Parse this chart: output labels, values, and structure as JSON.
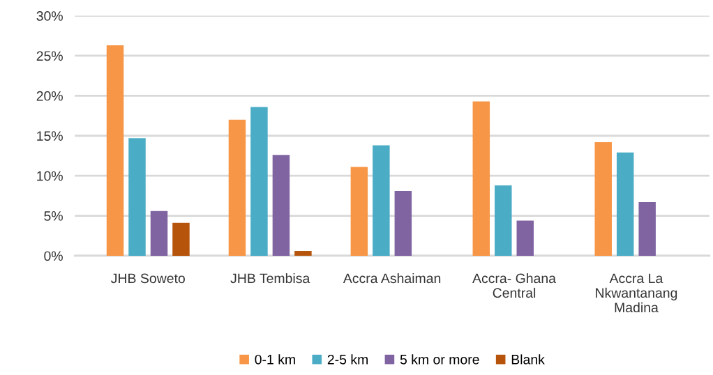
{
  "chart_data": {
    "type": "bar",
    "categories": [
      "JHB Soweto",
      "JHB Tembisa",
      "Accra Ashaiman",
      "Accra- Ghana\nCentral",
      "Accra La\nNkwantanang\nMadina"
    ],
    "series": [
      {
        "name": "0-1 km",
        "color": "#f79646",
        "values": [
          26.3,
          17.0,
          11.1,
          19.3,
          14.2
        ]
      },
      {
        "name": "2-5 km",
        "color": "#4bacc6",
        "values": [
          14.7,
          18.6,
          13.8,
          8.8,
          12.9
        ]
      },
      {
        "name": "5 km or more",
        "color": "#8064a2",
        "values": [
          5.6,
          12.6,
          8.1,
          4.4,
          6.7
        ]
      },
      {
        "name": "Blank",
        "color": "#b5540a",
        "values": [
          4.1,
          0.6,
          null,
          null,
          null
        ]
      }
    ],
    "ylim": [
      0,
      30
    ],
    "yticks": [
      {
        "value": 0,
        "label": "0%"
      },
      {
        "value": 5,
        "label": "5%"
      },
      {
        "value": 10,
        "label": "10%"
      },
      {
        "value": 15,
        "label": "15%"
      },
      {
        "value": 20,
        "label": "20%"
      },
      {
        "value": 25,
        "label": "25%"
      },
      {
        "value": 30,
        "label": "30%"
      }
    ],
    "grid": "y",
    "legend": "bottom"
  }
}
